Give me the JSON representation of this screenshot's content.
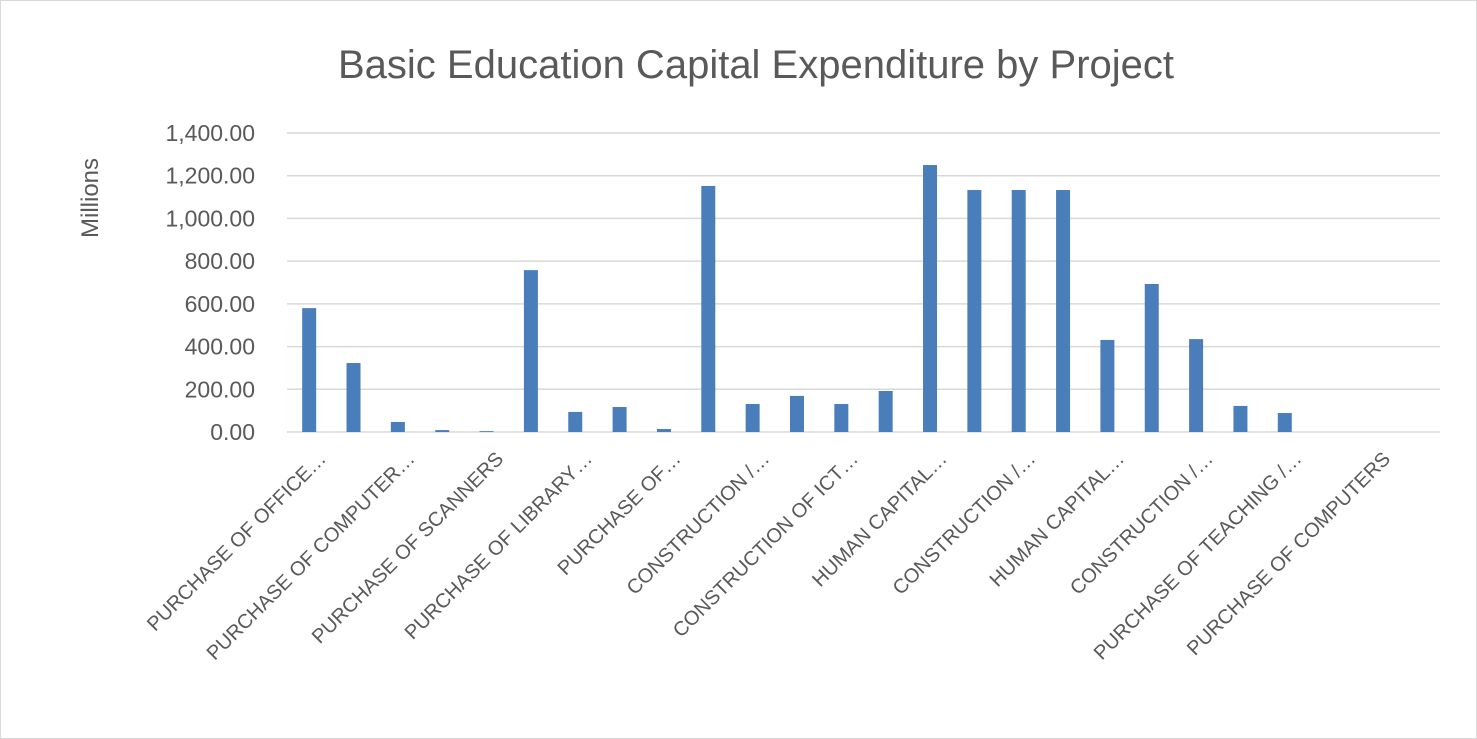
{
  "chart_data": {
    "type": "bar",
    "title": "Basic Education Capital Expenditure by Project",
    "y_axis_label": "Millions",
    "categories": [
      "PURCHASE OF OFFICE…",
      null,
      "PURCHASE OF COMPUTER…",
      null,
      "PURCHASE OF SCANNERS",
      null,
      "PURCHASE OF LIBRARY…",
      null,
      "PURCHASE OF…",
      null,
      "CONSTRUCTION /…",
      null,
      "CONSTRUCTION OF ICT…",
      null,
      "HUMAN CAPITAL…",
      null,
      "CONSTRUCTION /…",
      null,
      "HUMAN CAPITAL…",
      null,
      "CONSTRUCTION /…",
      null,
      "PURCHASE OF TEACHING /…",
      null,
      "PURCHASE OF COMPUTERS",
      null
    ],
    "values": [
      580,
      323,
      47,
      9,
      4,
      758,
      94,
      117,
      14,
      1152,
      131,
      169,
      131,
      192,
      1250,
      1133,
      1133,
      1133,
      431,
      693,
      435,
      122,
      89,
      0,
      0,
      0
    ],
    "color": "#4a7ebb",
    "ylim": [
      0,
      1400
    ],
    "yticks": [
      {
        "value": 0,
        "label": "0.00"
      },
      {
        "value": 200,
        "label": "200.00"
      },
      {
        "value": 400,
        "label": "400.00"
      },
      {
        "value": 600,
        "label": "600.00"
      },
      {
        "value": 800,
        "label": "800.00"
      },
      {
        "value": 1000,
        "label": "1,000.00"
      },
      {
        "value": 1200,
        "label": "1,200.00"
      },
      {
        "value": 1400,
        "label": "1,400.00"
      }
    ],
    "grid": true
  }
}
